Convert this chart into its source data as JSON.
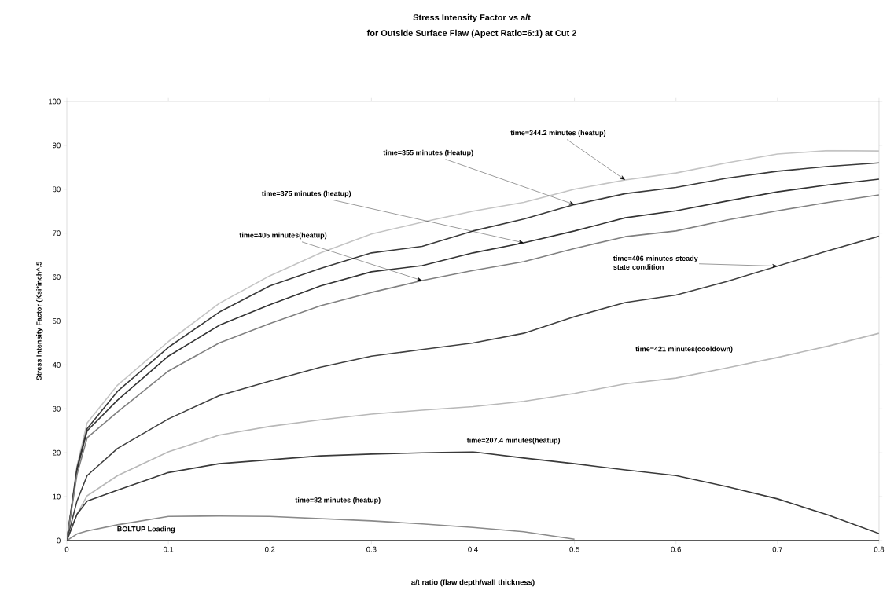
{
  "chart_data": {
    "type": "line",
    "title": "Stress Intensity Factor vs a/t",
    "subtitle": "for Outside Surface Flaw (Apect Ratio=6:1) at Cut 2",
    "xlabel": "a/t ratio (flaw depth/wall thickness)",
    "ylabel": "Stress Intensity Factor (Ksi*inch^.5",
    "xlim": [
      0,
      0.8
    ],
    "ylim": [
      0,
      100
    ],
    "xticks": [
      0,
      0.1,
      0.2,
      0.3,
      0.4,
      0.5,
      0.6,
      0.7,
      0.8
    ],
    "yticks": [
      0,
      10,
      20,
      30,
      40,
      50,
      60,
      70,
      80,
      90,
      100
    ],
    "grid": false,
    "marker": "none",
    "line_style": "solid",
    "x": [
      0,
      0.01,
      0.02,
      0.05,
      0.1,
      0.15,
      0.2,
      0.25,
      0.3,
      0.35,
      0.4,
      0.45,
      0.5,
      0.55,
      0.6,
      0.65,
      0.7,
      0.75,
      0.8
    ],
    "series": [
      {
        "color": "#c4c4c4",
        "values": [
          0,
          17,
          26.8,
          35.4,
          45.3,
          54,
          60.3,
          65.5,
          69.8,
          72.5,
          75,
          77,
          80,
          82.1,
          83.7,
          86,
          88,
          88.8,
          88.7
        ]
      },
      {
        "color": "#3a3a3a",
        "values": [
          0,
          16.5,
          25.5,
          34,
          44,
          52,
          58,
          62,
          65.5,
          67,
          70.5,
          73.2,
          76.5,
          79,
          80.4,
          82.5,
          84.1,
          85.2,
          86
        ]
      },
      {
        "color": "#333333",
        "values": [
          0,
          16,
          25,
          32,
          42,
          49,
          53.7,
          58,
          61.2,
          62.6,
          65.5,
          67.8,
          70.5,
          73.5,
          75.1,
          77.3,
          79.4,
          81,
          82.3
        ]
      },
      {
        "color": "#808080",
        "values": [
          0,
          15,
          23.4,
          29.3,
          38.6,
          45,
          49.4,
          53.5,
          56.5,
          59.2,
          61.5,
          63.5,
          66.5,
          69.2,
          70.5,
          73,
          75.1,
          77,
          78.7
        ]
      },
      {
        "color": "#404040",
        "values": [
          0,
          9,
          14.8,
          21,
          27.7,
          33,
          36.3,
          39.5,
          42,
          43.5,
          45,
          47.2,
          51,
          54.2,
          55.9,
          59,
          62.5,
          66,
          69.3
        ]
      },
      {
        "color": "#b8b8b8",
        "values": [
          0,
          6,
          10.2,
          14.8,
          20.2,
          24,
          26,
          27.5,
          28.8,
          29.7,
          30.5,
          31.7,
          33.5,
          35.7,
          37,
          39.3,
          41.7,
          44.3,
          47.2
        ]
      },
      {
        "color": "#3a3a3a",
        "values": [
          0,
          6,
          9,
          11.5,
          15.5,
          17.5,
          18.4,
          19.3,
          19.7,
          20,
          20.2,
          18.8,
          17.5,
          16.1,
          14.8,
          12.3,
          9.5,
          5.8,
          1.6
        ]
      },
      {
        "color": "#8a8a8a",
        "values": [
          0,
          1.5,
          2.2,
          3.6,
          5.5,
          5.6,
          5.5,
          5,
          4.5,
          3.8,
          3,
          2,
          0.3,
          null,
          null,
          null,
          null,
          null,
          null
        ]
      },
      {
        "color": "#2a2a2a",
        "values": [
          0,
          0,
          0,
          0,
          0,
          0,
          0,
          0,
          0,
          0,
          0,
          0,
          0,
          0,
          0,
          0,
          0,
          0,
          0
        ]
      }
    ],
    "annotations": [
      {
        "text": "time=344.2 minutes (heatup)",
        "x": 0.55,
        "y": 82.1
      },
      {
        "text": "time=355 minutes (Heatup)",
        "x": 0.5,
        "y": 76.5
      },
      {
        "text": "time=375 minutes (heatup)",
        "x": 0.45,
        "y": 67.8
      },
      {
        "text": "time=405 minutes(heatup)",
        "x": 0.35,
        "y": 59.2
      },
      {
        "text": "time=406 minutes steady state condition",
        "x": 0.7,
        "y": 62.5
      },
      "time=421 minutes(cooldown)",
      "time=207.4 minutes(heatup)",
      "time=82 minutes (heatup)",
      "BOLTUP Loading"
    ]
  }
}
